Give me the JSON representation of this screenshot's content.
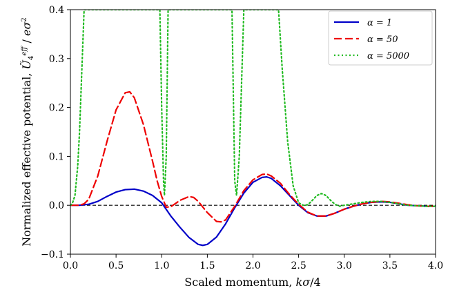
{
  "chart_data": {
    "type": "line",
    "xlabel": "Scaled momentum, kσ/4",
    "ylabel": "Normalized effective potential, Ũ_4^eff / eσ²",
    "xlim": [
      0.0,
      4.0
    ],
    "ylim": [
      -0.1,
      0.4
    ],
    "x_ticks": [
      "0.0",
      "0.5",
      "1.0",
      "1.5",
      "2.0",
      "2.5",
      "3.0",
      "3.5",
      "4.0"
    ],
    "y_ticks": [
      "−0.1",
      "0.0",
      "0.1",
      "0.2",
      "0.3",
      "0.4"
    ],
    "legend_position": "top-right",
    "reference_line": {
      "y": 0.0,
      "style": "dashed",
      "color": "#000000"
    },
    "series": [
      {
        "name": "α = 1",
        "color": "#0000c8",
        "style": "solid",
        "x": [
          0.0,
          0.1,
          0.2,
          0.3,
          0.4,
          0.5,
          0.6,
          0.7,
          0.8,
          0.9,
          1.0,
          1.1,
          1.2,
          1.3,
          1.4,
          1.45,
          1.5,
          1.6,
          1.7,
          1.8,
          1.9,
          2.0,
          2.1,
          2.15,
          2.2,
          2.3,
          2.4,
          2.5,
          2.6,
          2.7,
          2.8,
          2.9,
          3.0,
          3.1,
          3.2,
          3.3,
          3.4,
          3.5,
          3.6,
          3.7,
          3.8,
          3.9,
          4.0
        ],
        "y": [
          0.0,
          0.0,
          0.002,
          0.008,
          0.018,
          0.027,
          0.032,
          0.033,
          0.029,
          0.02,
          0.005,
          -0.022,
          -0.045,
          -0.066,
          -0.08,
          -0.082,
          -0.08,
          -0.065,
          -0.038,
          -0.005,
          0.025,
          0.047,
          0.057,
          0.058,
          0.055,
          0.04,
          0.02,
          0.0,
          -0.015,
          -0.022,
          -0.022,
          -0.016,
          -0.008,
          -0.002,
          0.003,
          0.006,
          0.007,
          0.006,
          0.003,
          0.0,
          -0.001,
          -0.002,
          -0.002
        ]
      },
      {
        "name": "α = 50",
        "color": "#ee0000",
        "style": "dashed",
        "x": [
          0.0,
          0.1,
          0.15,
          0.2,
          0.3,
          0.4,
          0.5,
          0.6,
          0.65,
          0.7,
          0.8,
          0.9,
          0.95,
          1.0,
          1.05,
          1.1,
          1.2,
          1.3,
          1.35,
          1.4,
          1.5,
          1.6,
          1.65,
          1.7,
          1.8,
          1.9,
          2.0,
          2.1,
          2.15,
          2.2,
          2.3,
          2.4,
          2.5,
          2.6,
          2.7,
          2.8,
          2.9,
          3.0,
          3.1,
          3.2,
          3.3,
          3.4,
          3.5,
          3.6,
          3.7,
          3.8,
          3.9,
          4.0
        ],
        "y": [
          0.0,
          0.0,
          0.003,
          0.012,
          0.06,
          0.13,
          0.195,
          0.23,
          0.232,
          0.22,
          0.165,
          0.09,
          0.05,
          0.018,
          -0.004,
          -0.003,
          0.01,
          0.018,
          0.016,
          0.008,
          -0.015,
          -0.033,
          -0.034,
          -0.03,
          -0.002,
          0.03,
          0.052,
          0.063,
          0.064,
          0.06,
          0.045,
          0.022,
          0.002,
          -0.014,
          -0.022,
          -0.022,
          -0.016,
          -0.008,
          -0.002,
          0.003,
          0.006,
          0.008,
          0.007,
          0.004,
          0.001,
          -0.001,
          -0.002,
          -0.002
        ]
      },
      {
        "name": "α = 5000",
        "color": "#22bb22",
        "style": "dotted",
        "x": [
          0.0,
          0.02,
          0.05,
          0.08,
          0.1,
          0.12,
          0.15,
          0.98,
          1.0,
          1.02,
          1.03,
          1.05,
          1.07,
          1.77,
          1.8,
          1.82,
          1.85,
          1.9,
          1.95,
          2.28,
          2.32,
          2.38,
          2.44,
          2.5,
          2.55,
          2.6,
          2.65,
          2.7,
          2.75,
          2.8,
          2.85,
          2.9,
          2.95,
          3.0,
          3.1,
          3.2,
          3.3,
          3.4,
          3.5,
          3.6,
          3.7,
          3.8,
          3.9,
          4.0
        ],
        "y": [
          0.0,
          0.003,
          0.02,
          0.08,
          0.15,
          0.25,
          0.4,
          0.4,
          0.2,
          0.05,
          0.02,
          0.1,
          0.4,
          0.4,
          0.05,
          0.02,
          0.1,
          0.4,
          0.4,
          0.4,
          0.28,
          0.13,
          0.04,
          0.005,
          0.0,
          0.001,
          0.01,
          0.02,
          0.024,
          0.02,
          0.01,
          0.002,
          -0.002,
          0.0,
          0.003,
          0.006,
          0.008,
          0.008,
          0.006,
          0.003,
          0.0,
          -0.001,
          -0.002,
          -0.002
        ]
      }
    ]
  }
}
